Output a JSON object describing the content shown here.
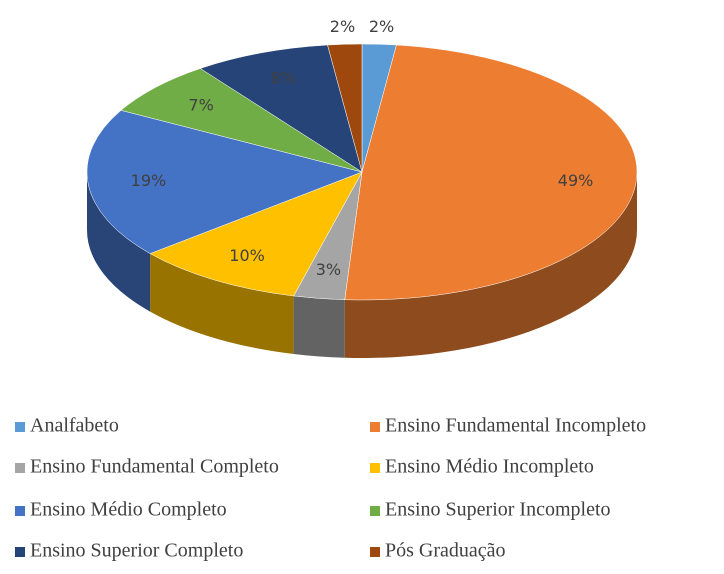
{
  "chart_data": {
    "type": "pie3d",
    "categories": [
      "Analfabeto",
      "Ensino Fundamental Incompleto",
      "Ensino Fundamental Completo",
      "Ensino Médio Incompleto",
      "Ensino Médio Completo",
      "Ensino Superior Incompleto",
      "Ensino Superior Completo",
      "Pós Graduação"
    ],
    "values": [
      2,
      49,
      3,
      10,
      19,
      7,
      8,
      2
    ],
    "value_labels": [
      "2%",
      "49%",
      "3%",
      "10%",
      "19%",
      "7%",
      "8%",
      "2%"
    ],
    "colors": [
      "#5B9BD5",
      "#ED7D31",
      "#A5A5A5",
      "#FFC000",
      "#4472C4",
      "#70AD47",
      "#264478",
      "#9E480E"
    ],
    "legend": "bottom"
  }
}
